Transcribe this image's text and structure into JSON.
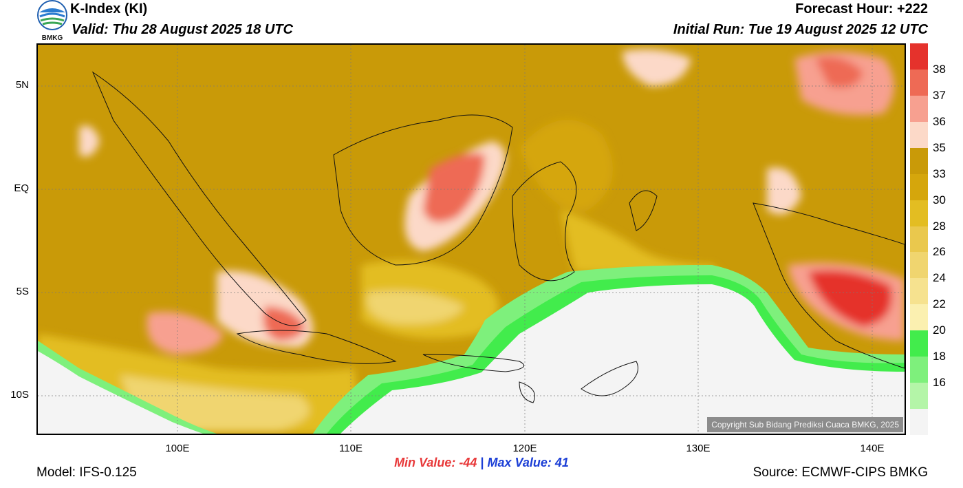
{
  "header": {
    "title": "K-Index (KI)",
    "valid": "Valid: Thu 28 August 2025 18 UTC",
    "forecast_hour": "Forecast Hour: +222",
    "initial_run": "Initial Run: Tue 19 August 2025 12 UTC",
    "logo_text": "BMKG"
  },
  "map": {
    "lat_labels": [
      "5N",
      "EQ",
      "5S",
      "10S"
    ],
    "lon_labels": [
      "100E",
      "110E",
      "120E",
      "130E",
      "140E"
    ],
    "copyright": "Copyright Sub Bidang Prediksi Cuaca BMKG, 2025"
  },
  "colorbar": {
    "labels": [
      "38",
      "37",
      "36",
      "35",
      "33",
      "30",
      "28",
      "26",
      "24",
      "22",
      "20",
      "18",
      "16"
    ],
    "colors": [
      "#e5322c",
      "#ee6a55",
      "#f7a090",
      "#fcd9c8",
      "#c99a08",
      "#d5a60c",
      "#e3bd22",
      "#eac84d",
      "#f0d56f",
      "#f6e28f",
      "#fbf0b0",
      "#42ec4c",
      "#7ef07c",
      "#b4f5a8",
      "#f4f4f4"
    ]
  },
  "stats": {
    "min_label": "Min Value:",
    "min_value": "-44",
    "separator": "|",
    "max_label": "Max Value:",
    "max_value": "41"
  },
  "footer": {
    "model": "Model: IFS-0.125",
    "source": "Source: ECMWF-CIPS BMKG"
  }
}
